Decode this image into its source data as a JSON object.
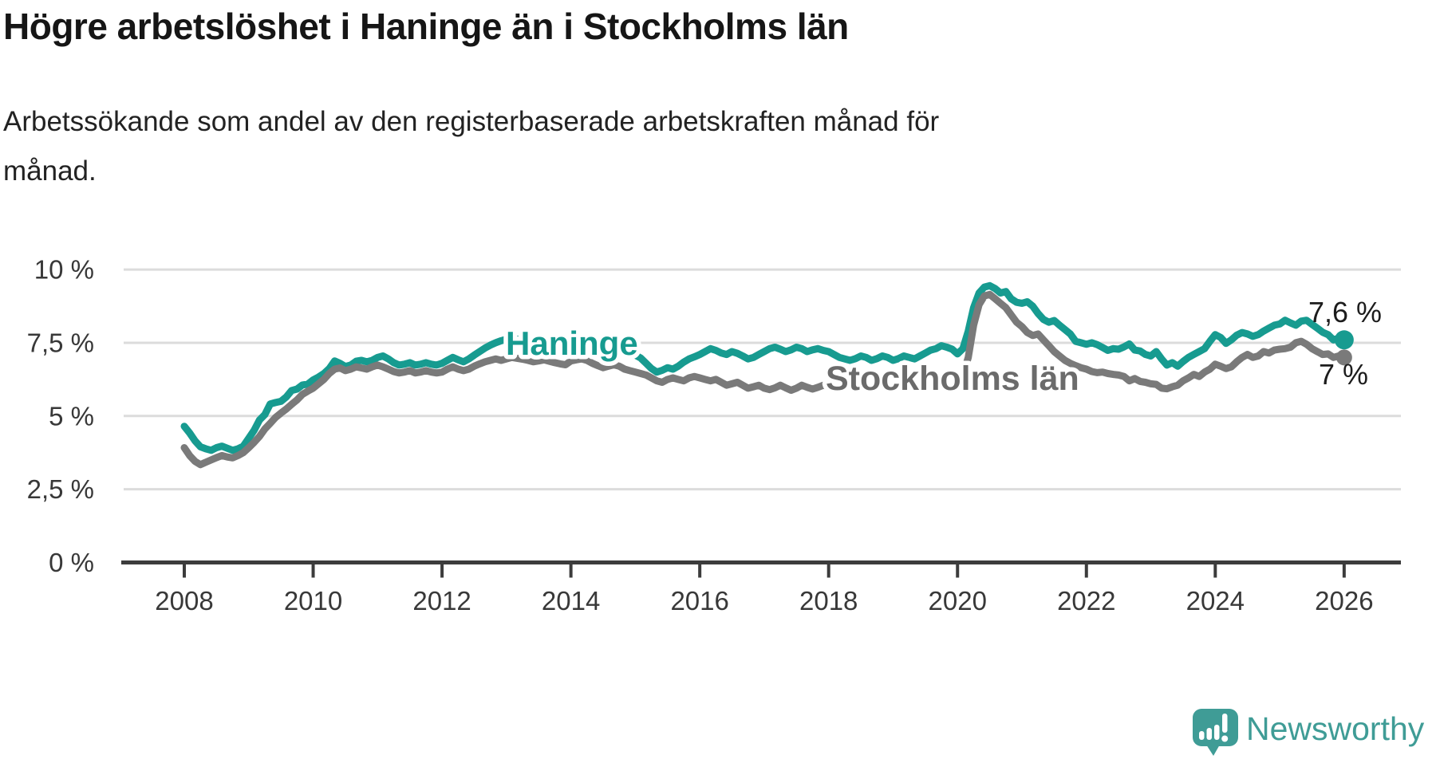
{
  "header": {
    "title": "Högre arbetslöshet i Haninge än i Stockholms län",
    "subtitle": "Arbetssökande som andel av den registerbaserade arbetskraften månad för månad."
  },
  "logo": {
    "text": "Newsworthy",
    "color": "#3f9c96",
    "icon": "speech-bubble-bar-chart-icon"
  },
  "chart_data": {
    "type": "line",
    "title": "Högre arbetslöshet i Haninge än i Stockholms län",
    "xlabel": "",
    "ylabel": "",
    "x_start": "2008-01",
    "x_end": "2026-01",
    "x_step_months": 1,
    "ylim": [
      0,
      10.9
    ],
    "grid": "horizontal",
    "legend_position": "inline-labels",
    "y_ticks": [
      {
        "value": 0,
        "label": "0 %"
      },
      {
        "value": 2.5,
        "label": "2,5 %"
      },
      {
        "value": 5,
        "label": "5 %"
      },
      {
        "value": 7.5,
        "label": "7,5 %"
      },
      {
        "value": 10,
        "label": "10 %"
      }
    ],
    "x_ticks": [
      2008,
      2010,
      2012,
      2014,
      2016,
      2018,
      2020,
      2022,
      2024,
      2026
    ],
    "series": [
      {
        "name": "Haninge",
        "color": "#179b90",
        "label_color": "#179b90",
        "end_label": "7,6 %",
        "end_value": 7.6,
        "values": [
          4.65,
          4.42,
          4.15,
          3.95,
          3.88,
          3.83,
          3.92,
          3.97,
          3.9,
          3.83,
          3.88,
          3.97,
          4.24,
          4.51,
          4.86,
          5.05,
          5.41,
          5.46,
          5.5,
          5.65,
          5.87,
          5.92,
          6.06,
          6.09,
          6.23,
          6.33,
          6.45,
          6.62,
          6.88,
          6.8,
          6.69,
          6.74,
          6.87,
          6.9,
          6.85,
          6.9,
          7.0,
          7.05,
          6.95,
          6.82,
          6.74,
          6.77,
          6.82,
          6.74,
          6.77,
          6.82,
          6.77,
          6.74,
          6.8,
          6.9,
          7.0,
          6.92,
          6.85,
          6.95,
          7.08,
          7.2,
          7.32,
          7.42,
          7.5,
          7.57,
          7.62,
          7.66,
          7.62,
          7.58,
          7.54,
          7.5,
          7.53,
          7.56,
          7.5,
          7.45,
          7.42,
          7.4,
          7.37,
          7.34,
          7.4,
          7.44,
          7.38,
          7.3,
          7.25,
          7.3,
          7.34,
          7.28,
          7.2,
          7.14,
          7.08,
          6.98,
          6.8,
          6.62,
          6.5,
          6.56,
          6.65,
          6.6,
          6.7,
          6.84,
          6.95,
          7.02,
          7.1,
          7.2,
          7.3,
          7.24,
          7.15,
          7.1,
          7.2,
          7.14,
          7.05,
          6.95,
          7.0,
          7.1,
          7.2,
          7.3,
          7.35,
          7.28,
          7.2,
          7.26,
          7.35,
          7.3,
          7.2,
          7.26,
          7.3,
          7.24,
          7.2,
          7.1,
          7.0,
          6.95,
          6.9,
          6.96,
          7.05,
          7.0,
          6.9,
          6.96,
          7.05,
          7.0,
          6.9,
          6.96,
          7.05,
          7.0,
          6.95,
          7.05,
          7.15,
          7.25,
          7.3,
          7.4,
          7.35,
          7.28,
          7.12,
          7.3,
          7.9,
          8.7,
          9.2,
          9.4,
          9.45,
          9.35,
          9.2,
          9.25,
          9.0,
          8.88,
          8.85,
          8.9,
          8.75,
          8.5,
          8.3,
          8.2,
          8.26,
          8.1,
          7.95,
          7.8,
          7.55,
          7.5,
          7.45,
          7.5,
          7.44,
          7.34,
          7.24,
          7.3,
          7.28,
          7.36,
          7.46,
          7.25,
          7.22,
          7.1,
          7.05,
          7.2,
          6.95,
          6.74,
          6.82,
          6.7,
          6.86,
          7.0,
          7.1,
          7.2,
          7.3,
          7.55,
          7.78,
          7.68,
          7.48,
          7.6,
          7.76,
          7.85,
          7.8,
          7.72,
          7.78,
          7.9,
          8.0,
          8.1,
          8.14,
          8.27,
          8.18,
          8.1,
          8.24,
          8.27,
          8.13,
          8.0,
          7.86,
          7.78,
          7.6,
          7.66,
          7.6
        ]
      },
      {
        "name": "Stockholms län",
        "color": "#7a7a7a",
        "label_color": "#6b6b6b",
        "end_label": "7 %",
        "end_value": 7.0,
        "values": [
          3.92,
          3.65,
          3.45,
          3.34,
          3.42,
          3.5,
          3.58,
          3.65,
          3.6,
          3.57,
          3.65,
          3.75,
          3.92,
          4.1,
          4.3,
          4.56,
          4.75,
          4.95,
          5.1,
          5.24,
          5.4,
          5.55,
          5.74,
          5.85,
          5.95,
          6.1,
          6.25,
          6.45,
          6.6,
          6.64,
          6.55,
          6.6,
          6.68,
          6.64,
          6.6,
          6.68,
          6.74,
          6.68,
          6.6,
          6.52,
          6.47,
          6.5,
          6.55,
          6.47,
          6.5,
          6.55,
          6.5,
          6.47,
          6.5,
          6.6,
          6.68,
          6.6,
          6.55,
          6.6,
          6.7,
          6.78,
          6.85,
          6.9,
          6.95,
          6.9,
          6.95,
          7.0,
          6.97,
          6.94,
          6.9,
          6.85,
          6.88,
          6.92,
          6.87,
          6.82,
          6.78,
          6.75,
          6.88,
          6.92,
          6.95,
          6.9,
          6.8,
          6.72,
          6.65,
          6.7,
          6.75,
          6.7,
          6.6,
          6.55,
          6.5,
          6.45,
          6.4,
          6.3,
          6.2,
          6.15,
          6.25,
          6.3,
          6.25,
          6.2,
          6.3,
          6.35,
          6.3,
          6.25,
          6.2,
          6.25,
          6.15,
          6.05,
          6.1,
          6.15,
          6.05,
          5.95,
          6.0,
          6.05,
          5.95,
          5.9,
          5.96,
          6.05,
          5.96,
          5.88,
          5.95,
          6.05,
          5.98,
          5.92,
          5.98,
          6.05,
          6.0,
          6.05,
          6.1,
          6.05,
          6.0,
          6.05,
          6.1,
          6.05,
          6.02,
          6.08,
          6.12,
          6.1,
          6.05,
          6.1,
          6.15,
          6.1,
          6.08,
          6.15,
          6.2,
          6.18,
          6.25,
          6.3,
          6.28,
          6.25,
          6.3,
          6.4,
          7.0,
          8.1,
          8.8,
          9.1,
          9.15,
          9.0,
          8.85,
          8.7,
          8.45,
          8.2,
          8.05,
          7.85,
          7.75,
          7.8,
          7.6,
          7.4,
          7.2,
          7.05,
          6.9,
          6.8,
          6.72,
          6.65,
          6.6,
          6.52,
          6.48,
          6.5,
          6.45,
          6.42,
          6.4,
          6.35,
          6.2,
          6.28,
          6.18,
          6.15,
          6.1,
          6.08,
          5.95,
          5.93,
          6.0,
          6.05,
          6.2,
          6.3,
          6.42,
          6.35,
          6.5,
          6.6,
          6.77,
          6.7,
          6.62,
          6.68,
          6.85,
          7.0,
          7.1,
          7.0,
          7.05,
          7.2,
          7.15,
          7.25,
          7.28,
          7.3,
          7.35,
          7.5,
          7.55,
          7.45,
          7.3,
          7.2,
          7.1,
          7.12,
          7.0,
          7.05,
          7.0
        ]
      }
    ]
  }
}
